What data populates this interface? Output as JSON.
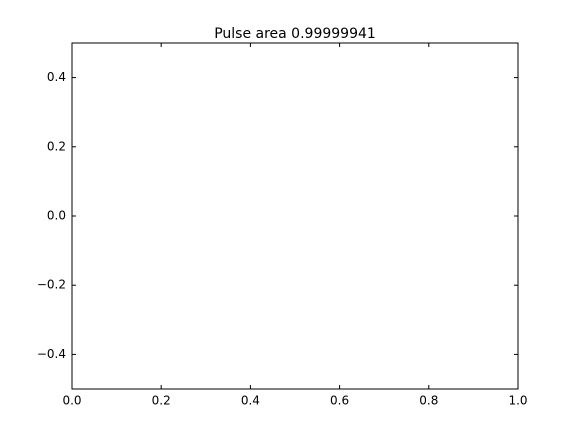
{
  "chart_data": {
    "type": "line",
    "title": "Pulse area 0.99999941",
    "xlabel": "",
    "ylabel": "",
    "xlim": [
      0.0,
      1.0
    ],
    "ylim": [
      -0.5,
      0.5
    ],
    "x_ticks": [
      0.0,
      0.2,
      0.4,
      0.6,
      0.8,
      1.0
    ],
    "x_tick_labels": [
      "0.0",
      "0.2",
      "0.4",
      "0.6",
      "0.8",
      "1.0"
    ],
    "y_ticks": [
      -0.4,
      -0.2,
      0.0,
      0.2,
      0.4
    ],
    "y_tick_labels": [
      "−0.4",
      "−0.2",
      "0.0",
      "0.2",
      "0.4"
    ],
    "series": [],
    "grid": false,
    "legend": "none",
    "colors": {
      "axes": "#000000",
      "background": "#ffffff",
      "plot_background": "#ffffff"
    }
  }
}
